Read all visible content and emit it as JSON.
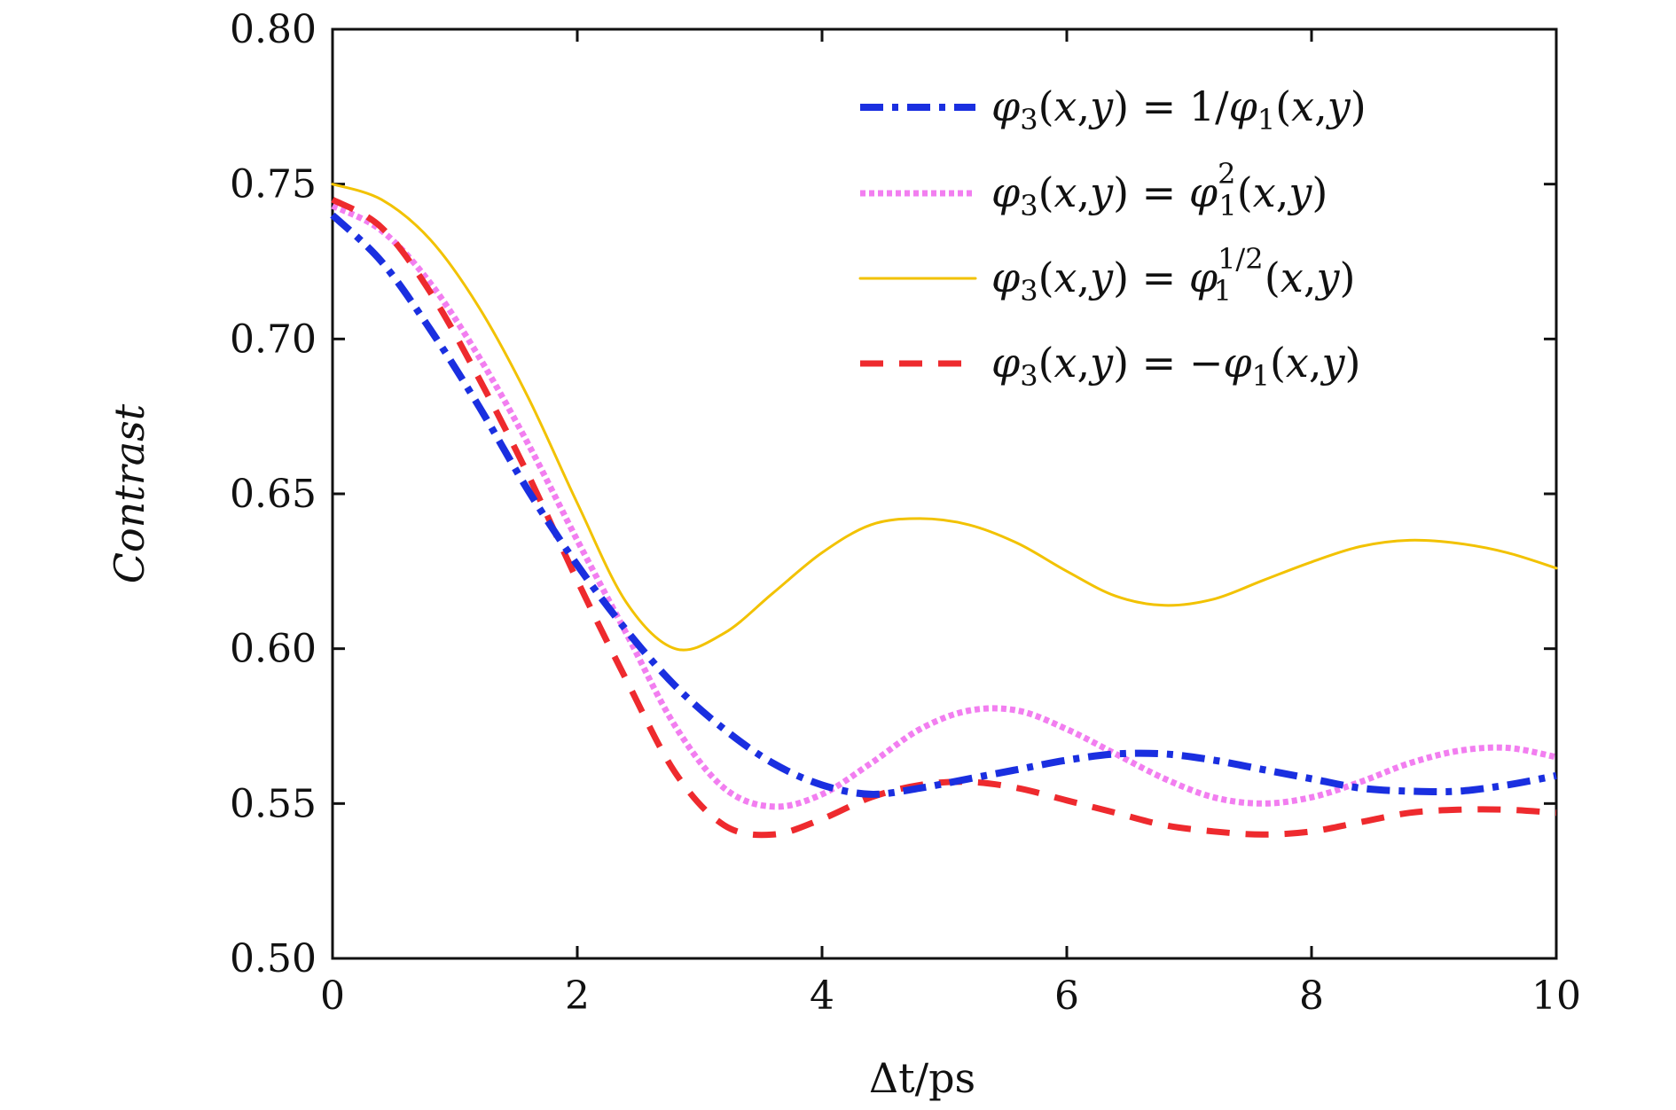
{
  "chart_data": {
    "type": "line",
    "xlabel": "Δt/ps",
    "ylabel": "Contrast",
    "xlim": [
      0,
      10
    ],
    "ylim": [
      0.5,
      0.8
    ],
    "x_ticks": [
      "0",
      "2",
      "4",
      "6",
      "8",
      "10"
    ],
    "y_ticks": [
      "0.50",
      "0.55",
      "0.60",
      "0.65",
      "0.70",
      "0.75",
      "0.80"
    ],
    "grid": false,
    "legend_position": "top-right",
    "series": [
      {
        "name": "φ3(x,y) = 1/φ1(x,y)",
        "color": "#1a2fe0",
        "style": "dashdot",
        "x": [
          0,
          0.4,
          0.8,
          1.2,
          1.6,
          2.0,
          2.4,
          2.8,
          3.2,
          3.6,
          4.0,
          4.4,
          4.8,
          5.2,
          5.6,
          6.0,
          6.4,
          6.8,
          7.2,
          7.6,
          8.0,
          8.4,
          8.8,
          9.2,
          9.6,
          10.0
        ],
        "y": [
          0.74,
          0.725,
          0.703,
          0.678,
          0.651,
          0.627,
          0.606,
          0.588,
          0.574,
          0.563,
          0.556,
          0.553,
          0.555,
          0.558,
          0.561,
          0.564,
          0.566,
          0.566,
          0.564,
          0.561,
          0.558,
          0.555,
          0.554,
          0.554,
          0.556,
          0.559
        ]
      },
      {
        "name": "φ3(x,y) = φ1²(x,y)",
        "color": "#f27ef0",
        "style": "dotted",
        "x": [
          0,
          0.4,
          0.8,
          1.2,
          1.6,
          2.0,
          2.4,
          2.8,
          3.2,
          3.6,
          4.0,
          4.4,
          4.8,
          5.2,
          5.6,
          6.0,
          6.4,
          6.8,
          7.2,
          7.6,
          8.0,
          8.4,
          8.8,
          9.2,
          9.6,
          10.0
        ],
        "y": [
          0.743,
          0.735,
          0.718,
          0.694,
          0.666,
          0.635,
          0.605,
          0.575,
          0.555,
          0.549,
          0.553,
          0.563,
          0.574,
          0.58,
          0.58,
          0.574,
          0.566,
          0.558,
          0.552,
          0.55,
          0.552,
          0.557,
          0.563,
          0.567,
          0.568,
          0.565
        ]
      },
      {
        "name": "φ3(x,y) = φ1^{1/2}(x,y)",
        "color": "#f2c200",
        "style": "solid",
        "x": [
          0,
          0.4,
          0.8,
          1.2,
          1.6,
          2.0,
          2.4,
          2.8,
          3.2,
          3.6,
          4.0,
          4.4,
          4.8,
          5.2,
          5.6,
          6.0,
          6.4,
          6.8,
          7.2,
          7.6,
          8.0,
          8.4,
          8.8,
          9.2,
          9.6,
          10.0
        ],
        "y": [
          0.75,
          0.745,
          0.732,
          0.71,
          0.681,
          0.647,
          0.615,
          0.6,
          0.605,
          0.618,
          0.631,
          0.64,
          0.642,
          0.64,
          0.634,
          0.625,
          0.617,
          0.614,
          0.616,
          0.622,
          0.628,
          0.633,
          0.635,
          0.634,
          0.631,
          0.626
        ]
      },
      {
        "name": "φ3(x,y) = −φ1(x,y)",
        "color": "#ee2a2e",
        "style": "dashed",
        "x": [
          0,
          0.4,
          0.8,
          1.2,
          1.6,
          2.0,
          2.4,
          2.8,
          3.2,
          3.6,
          4.0,
          4.4,
          4.8,
          5.2,
          5.6,
          6.0,
          6.4,
          6.8,
          7.2,
          7.6,
          8.0,
          8.4,
          8.8,
          9.2,
          9.6,
          10.0
        ],
        "y": [
          0.745,
          0.736,
          0.715,
          0.687,
          0.656,
          0.622,
          0.59,
          0.56,
          0.543,
          0.54,
          0.545,
          0.552,
          0.556,
          0.557,
          0.555,
          0.551,
          0.547,
          0.543,
          0.541,
          0.54,
          0.541,
          0.544,
          0.547,
          0.548,
          0.548,
          0.547
        ]
      }
    ]
  }
}
